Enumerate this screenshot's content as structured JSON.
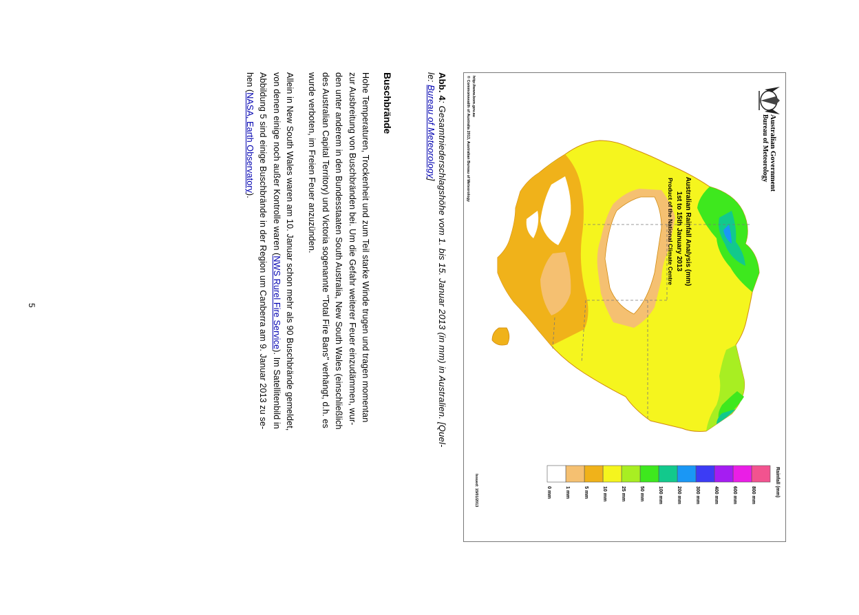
{
  "figure": {
    "gov_line1": "Australian Government",
    "gov_line2": "Bureau of Meteorology",
    "map_title_1": "Australian Rainfall Analysis (mm)",
    "map_title_2": "1st to 15th January 2013",
    "map_title_3": "Product of the National Climate Centre",
    "issued": "Issued: 15/01/2013",
    "url": "http://www.bom.gov.au",
    "copyright": "© Commonwealth of Australia 2013, Australian Bureau of Meteorology",
    "legend_title": "Rainfall (mm)",
    "legend": [
      {
        "label": "800 mm",
        "color": "#f2538f"
      },
      {
        "label": "600 mm",
        "color": "#ea1ee6"
      },
      {
        "label": "400 mm",
        "color": "#a51df2"
      },
      {
        "label": "300 mm",
        "color": "#3c3cf5"
      },
      {
        "label": "200 mm",
        "color": "#1a97f5"
      },
      {
        "label": "100 mm",
        "color": "#12c98c"
      },
      {
        "label": "50 mm",
        "color": "#3ee81e"
      },
      {
        "label": "25 mm",
        "color": "#a8ee22"
      },
      {
        "label": "10 mm",
        "color": "#f5f51e"
      },
      {
        "label": "5 mm",
        "color": "#f0b21a"
      },
      {
        "label": "1 mm",
        "color": "#f5c071"
      },
      {
        "label": "0 mm",
        "color": "#ffffff"
      }
    ]
  },
  "caption": {
    "label": "Abb. 4",
    "text": ": Gesamtniederschlagshöhe vom 1. bis 15. Januar 2013 (in mm) in Australien. [Quel-",
    "text2": "le: ",
    "link": "Bureau of Meteorology",
    "end": "]"
  },
  "section": {
    "heading": "Buschbrände",
    "para1": [
      "Hohe Temperaturen, Trockenheit und zum Teil starke Winde trugen und tragen momentan",
      "zur Ausbreitung von Buschbränden bei. Um die Gefahr weiterer Feuer einzudämmen, wur-",
      "den unter anderem in den Bundesstaaten South Australia, New South Wales (einschließlich",
      "des Australian Capital Territory) und Victoria sogenannte \"Total Fire Bans\" verhängt, d.h. es",
      "wurde verboten, im Freien Feuer anzuzünden."
    ],
    "para2_l1": "Allein in New South Wales waren am 10. Januar schon mehr als 90 Buschbrände gemeldet,",
    "para2_l2_a": "von denen einige noch außer Kontrolle waren (",
    "para2_l2_link": "NWS Rurel Fire Service",
    "para2_l2_b": "). Im Satellitenbild in",
    "para2_l3": "Abbildung 5 sind einige Buschbrände in der Region um Canberra am 9. Januar 2013 zu se-",
    "para2_l4_a": "hen (",
    "para2_l4_link": "NASA, Earth Observatory",
    "para2_l4_b": ")."
  },
  "page_number": "5"
}
